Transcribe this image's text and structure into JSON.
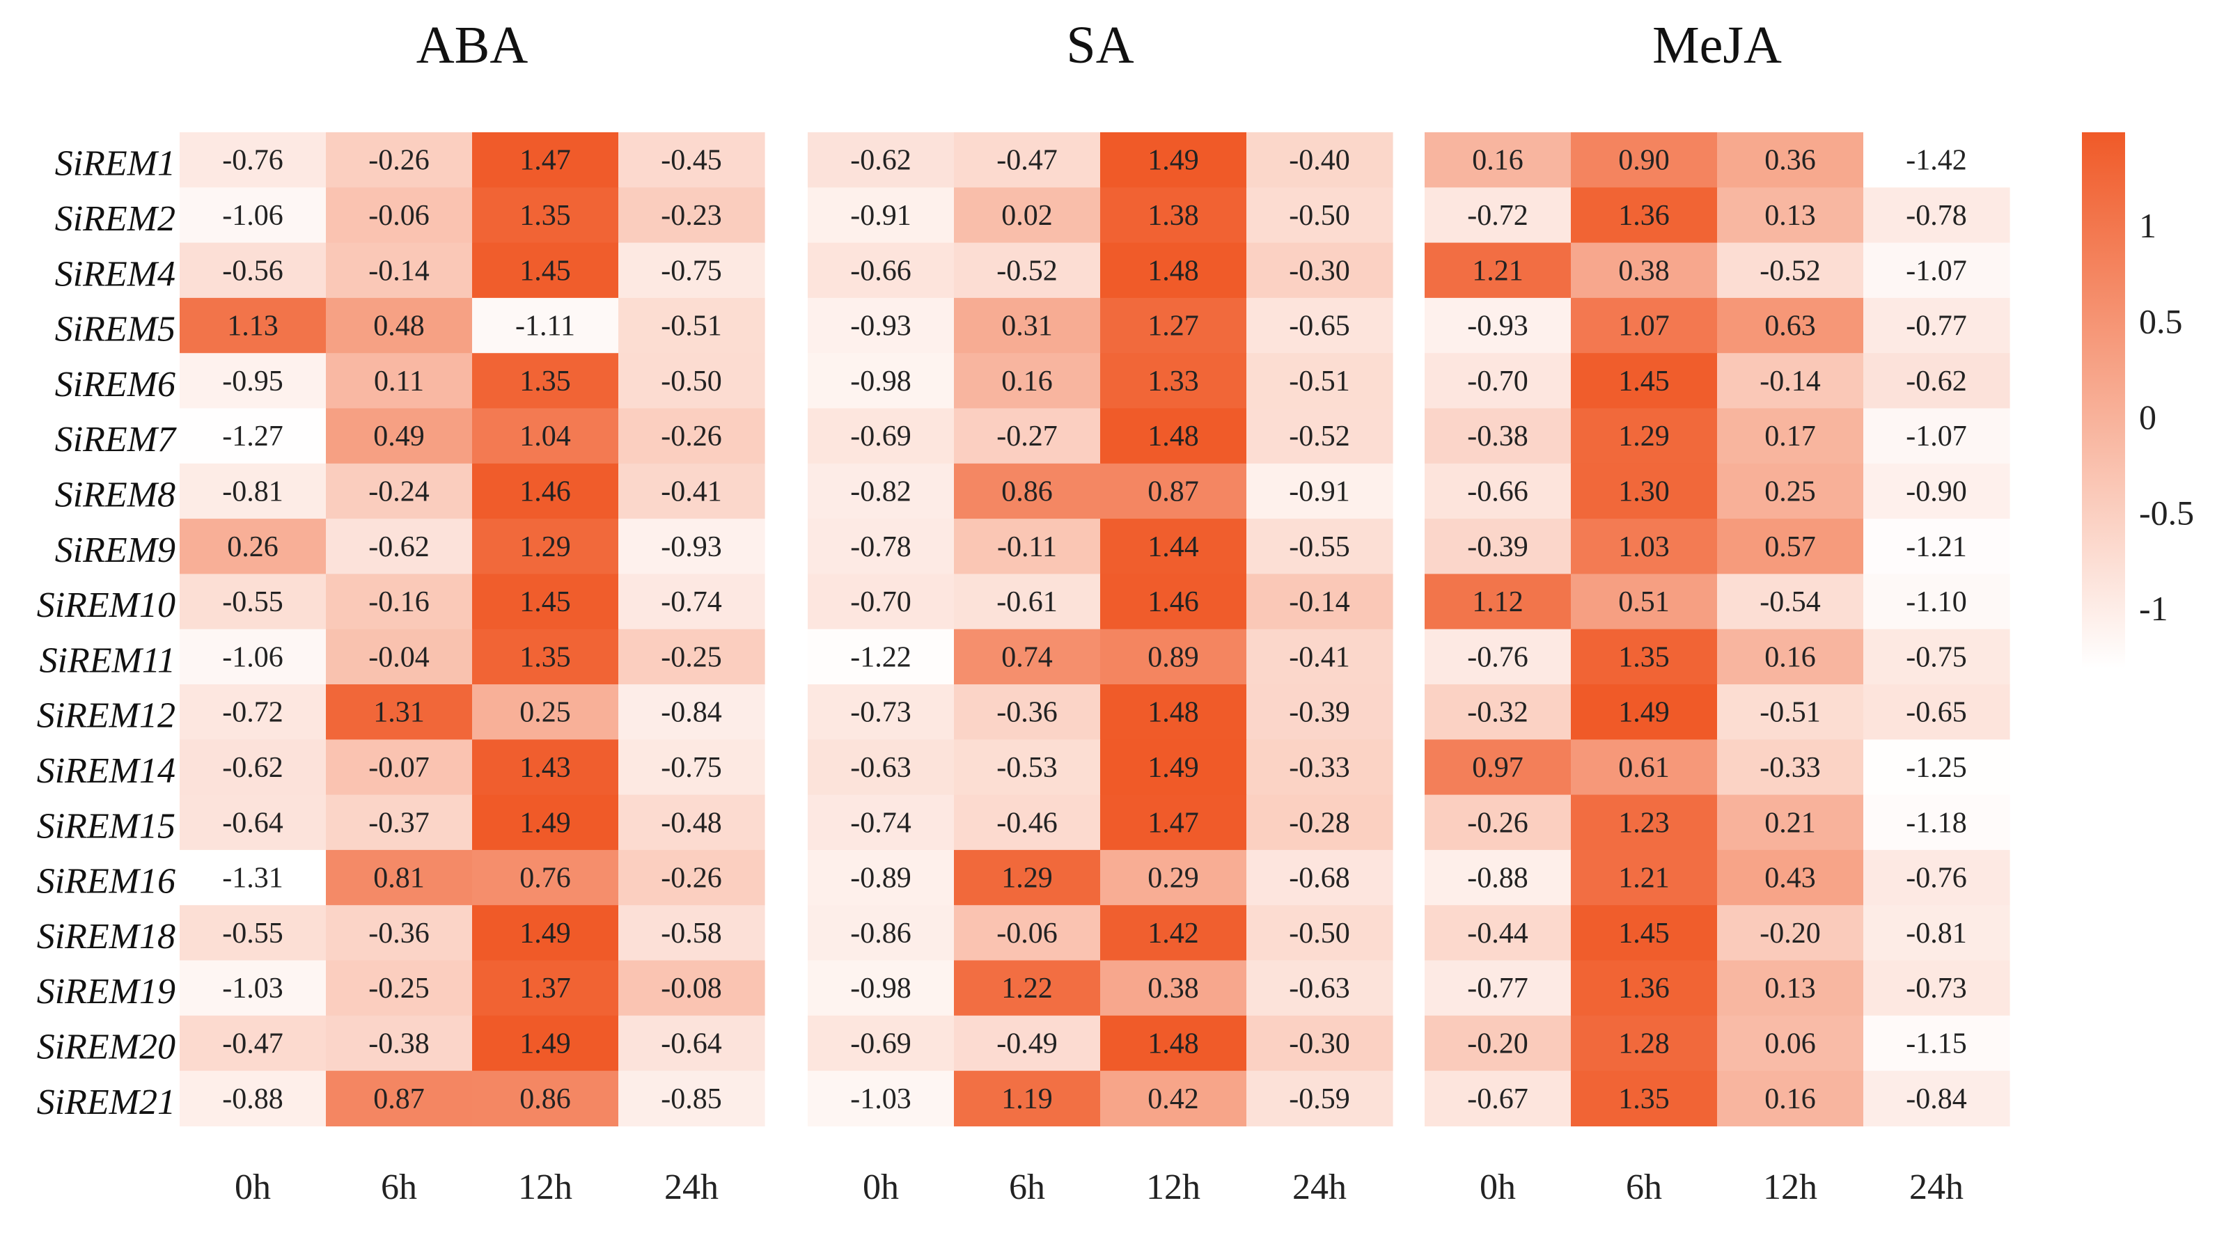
{
  "chart_data": {
    "type": "heatmap",
    "colors": {
      "low": "#ffffff",
      "high": "#f05a28"
    },
    "scale": {
      "min": -1.31,
      "max": 1.49
    },
    "legend": {
      "ticks": [
        "1",
        "0.5",
        "0",
        "-0.5",
        "-1"
      ]
    },
    "rows": [
      "SiREM1",
      "SiREM2",
      "SiREM4",
      "SiREM5",
      "SiREM6",
      "SiREM7",
      "SiREM8",
      "SiREM9",
      "SiREM10",
      "SiREM11",
      "SiREM12",
      "SiREM14",
      "SiREM15",
      "SiREM16",
      "SiREM18",
      "SiREM19",
      "SiREM20",
      "SiREM21"
    ],
    "panels": [
      {
        "title": "ABA",
        "columns": [
          "0h",
          "6h",
          "12h",
          "24h"
        ],
        "values": [
          [
            "-0.76",
            "-0.26",
            "1.47",
            "-0.45"
          ],
          [
            "-1.06",
            "-0.06",
            "1.35",
            "-0.23"
          ],
          [
            "-0.56",
            "-0.14",
            "1.45",
            "-0.75"
          ],
          [
            "1.13",
            "0.48",
            "-1.11",
            "-0.51"
          ],
          [
            "-0.95",
            "0.11",
            "1.35",
            "-0.50"
          ],
          [
            "-1.27",
            "0.49",
            "1.04",
            "-0.26"
          ],
          [
            "-0.81",
            "-0.24",
            "1.46",
            "-0.41"
          ],
          [
            "0.26",
            "-0.62",
            "1.29",
            "-0.93"
          ],
          [
            "-0.55",
            "-0.16",
            "1.45",
            "-0.74"
          ],
          [
            "-1.06",
            "-0.04",
            "1.35",
            "-0.25"
          ],
          [
            "-0.72",
            "1.31",
            "0.25",
            "-0.84"
          ],
          [
            "-0.62",
            "-0.07",
            "1.43",
            "-0.75"
          ],
          [
            "-0.64",
            "-0.37",
            "1.49",
            "-0.48"
          ],
          [
            "-1.31",
            "0.81",
            "0.76",
            "-0.26"
          ],
          [
            "-0.55",
            "-0.36",
            "1.49",
            "-0.58"
          ],
          [
            "-1.03",
            "-0.25",
            "1.37",
            "-0.08"
          ],
          [
            "-0.47",
            "-0.38",
            "1.49",
            "-0.64"
          ],
          [
            "-0.88",
            "0.87",
            "0.86",
            "-0.85"
          ]
        ]
      },
      {
        "title": "SA",
        "columns": [
          "0h",
          "6h",
          "12h",
          "24h"
        ],
        "values": [
          [
            "-0.62",
            "-0.47",
            "1.49",
            "-0.40"
          ],
          [
            "-0.91",
            "0.02",
            "1.38",
            "-0.50"
          ],
          [
            "-0.66",
            "-0.52",
            "1.48",
            "-0.30"
          ],
          [
            "-0.93",
            "0.31",
            "1.27",
            "-0.65"
          ],
          [
            "-0.98",
            "0.16",
            "1.33",
            "-0.51"
          ],
          [
            "-0.69",
            "-0.27",
            "1.48",
            "-0.52"
          ],
          [
            "-0.82",
            "0.86",
            "0.87",
            "-0.91"
          ],
          [
            "-0.78",
            "-0.11",
            "1.44",
            "-0.55"
          ],
          [
            "-0.70",
            "-0.61",
            "1.46",
            "-0.14"
          ],
          [
            "-1.22",
            "0.74",
            "0.89",
            "-0.41"
          ],
          [
            "-0.73",
            "-0.36",
            "1.48",
            "-0.39"
          ],
          [
            "-0.63",
            "-0.53",
            "1.49",
            "-0.33"
          ],
          [
            "-0.74",
            "-0.46",
            "1.47",
            "-0.28"
          ],
          [
            "-0.89",
            "1.29",
            "0.29",
            "-0.68"
          ],
          [
            "-0.86",
            "-0.06",
            "1.42",
            "-0.50"
          ],
          [
            "-0.98",
            "1.22",
            "0.38",
            "-0.63"
          ],
          [
            "-0.69",
            "-0.49",
            "1.48",
            "-0.30"
          ],
          [
            "-1.03",
            "1.19",
            "0.42",
            "-0.59"
          ]
        ]
      },
      {
        "title": "MeJA",
        "columns": [
          "0h",
          "6h",
          "12h",
          "24h"
        ],
        "values": [
          [
            "0.16",
            "0.90",
            "0.36",
            "-1.42"
          ],
          [
            "-0.72",
            "1.36",
            "0.13",
            "-0.78"
          ],
          [
            "1.21",
            "0.38",
            "-0.52",
            "-1.07"
          ],
          [
            "-0.93",
            "1.07",
            "0.63",
            "-0.77"
          ],
          [
            "-0.70",
            "1.45",
            "-0.14",
            "-0.62"
          ],
          [
            "-0.38",
            "1.29",
            "0.17",
            "-1.07"
          ],
          [
            "-0.66",
            "1.30",
            "0.25",
            "-0.90"
          ],
          [
            "-0.39",
            "1.03",
            "0.57",
            "-1.21"
          ],
          [
            "1.12",
            "0.51",
            "-0.54",
            "-1.10"
          ],
          [
            "-0.76",
            "1.35",
            "0.16",
            "-0.75"
          ],
          [
            "-0.32",
            "1.49",
            "-0.51",
            "-0.65"
          ],
          [
            "0.97",
            "0.61",
            "-0.33",
            "-1.25"
          ],
          [
            "-0.26",
            "1.23",
            "0.21",
            "-1.18"
          ],
          [
            "-0.88",
            "1.21",
            "0.43",
            "-0.76"
          ],
          [
            "-0.44",
            "1.45",
            "-0.20",
            "-0.81"
          ],
          [
            "-0.77",
            "1.36",
            "0.13",
            "-0.73"
          ],
          [
            "-0.20",
            "1.28",
            "0.06",
            "-1.15"
          ],
          [
            "-0.67",
            "1.35",
            "0.16",
            "-0.84"
          ]
        ]
      }
    ]
  }
}
